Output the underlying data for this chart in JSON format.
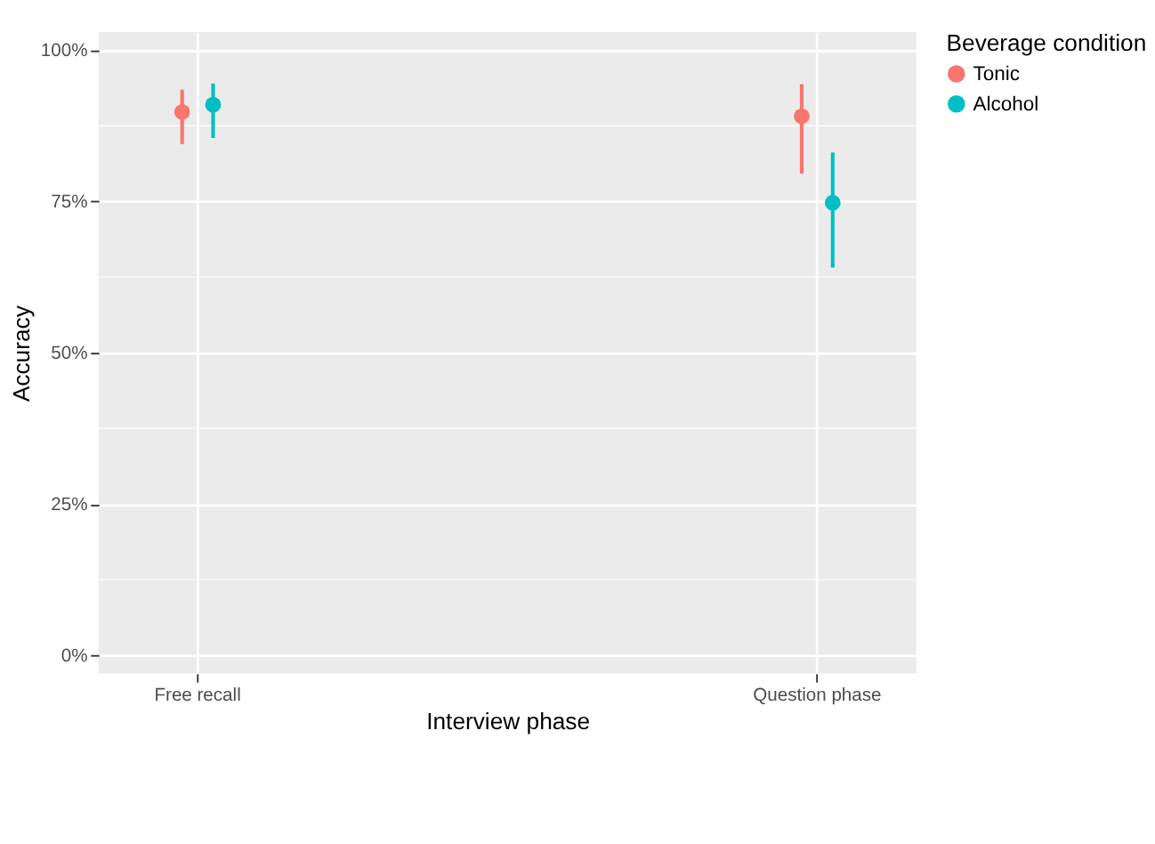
{
  "chart_data": {
    "type": "scatter",
    "xlabel": "Interview phase",
    "ylabel": "Accuracy",
    "legend_title": "Beverage condition",
    "categories": [
      "Free recall",
      "Question phase"
    ],
    "series": [
      {
        "name": "Tonic",
        "color": "#f8766d",
        "values": [
          89.8,
          89.1
        ],
        "errors": [
          [
            84.5,
            93.5
          ],
          [
            79.6,
            94.4
          ]
        ]
      },
      {
        "name": "Alcohol",
        "color": "#00bfc4",
        "values": [
          91.0,
          74.8
        ],
        "errors": [
          [
            85.5,
            94.5
          ],
          [
            64.1,
            83.1
          ]
        ]
      }
    ],
    "ylim": [
      -3,
      103
    ],
    "yticks": [
      {
        "value": 0,
        "label": "0%"
      },
      {
        "value": 25,
        "label": "25%"
      },
      {
        "value": 50,
        "label": "50%"
      },
      {
        "value": 75,
        "label": "75%"
      },
      {
        "value": 100,
        "label": "100%"
      }
    ],
    "grid": true,
    "legend": "right",
    "marker": "circle"
  }
}
